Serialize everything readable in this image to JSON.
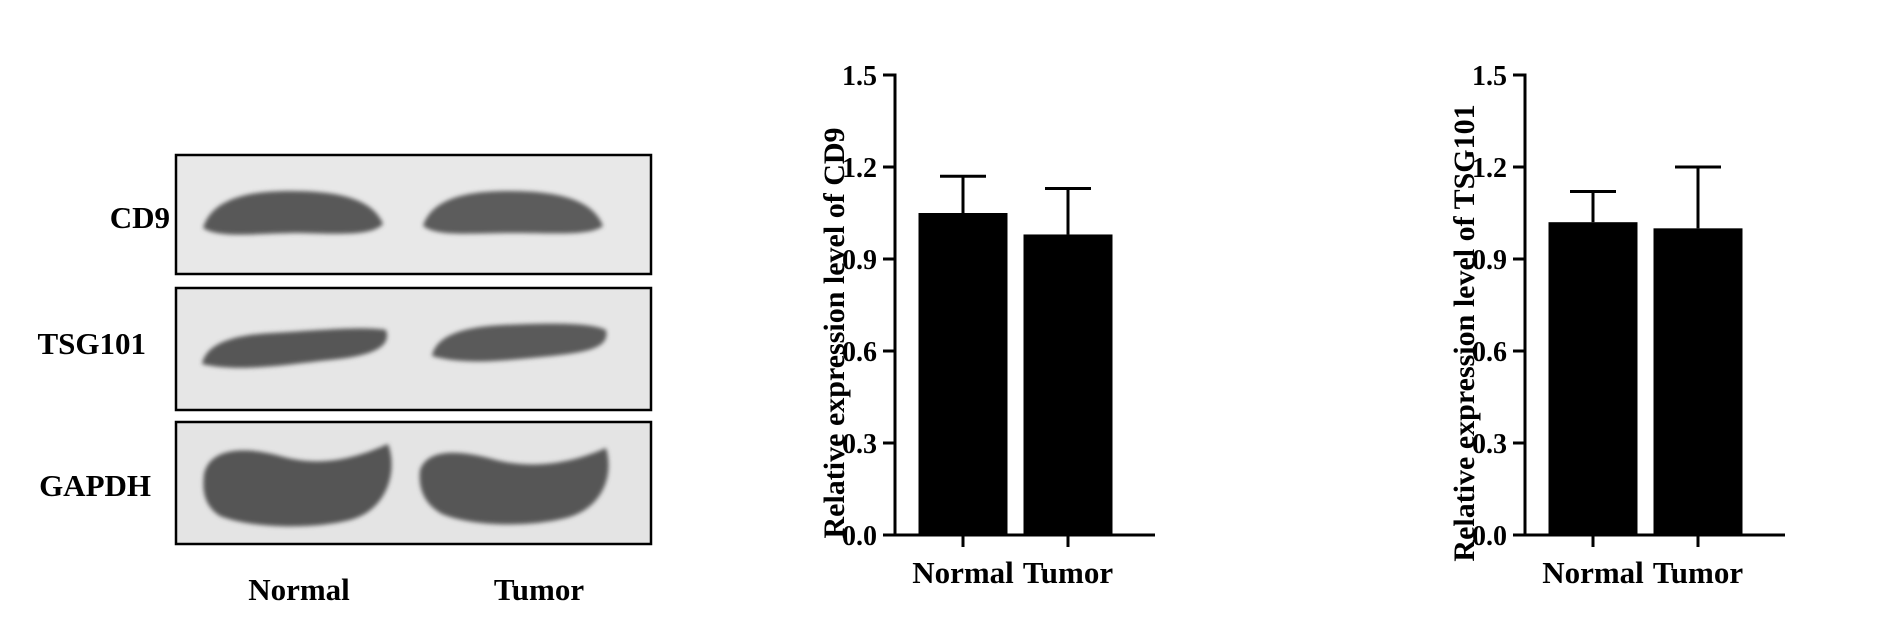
{
  "blot": {
    "rows": [
      {
        "label": "CD9"
      },
      {
        "label": "TSG101"
      },
      {
        "label": "GAPDH"
      }
    ],
    "lanes": [
      "Normal",
      "Tumor"
    ]
  },
  "colors": {
    "bar": "#000000",
    "band": "#5a5a5a",
    "membrane": "#e6e6e6"
  },
  "chart_data": [
    {
      "type": "bar",
      "categories": [
        "Normal",
        "Tumor"
      ],
      "values": [
        1.05,
        0.98
      ],
      "errors": [
        0.12,
        0.15
      ],
      "title": "",
      "xlabel": "",
      "ylabel": "Relative expression level of CD9",
      "ylim": [
        0,
        1.5
      ],
      "yticks": [
        "0.0",
        "0.3",
        "0.6",
        "0.9",
        "1.2",
        "1.5"
      ],
      "grid": false
    },
    {
      "type": "bar",
      "categories": [
        "Normal",
        "Tumor"
      ],
      "values": [
        1.02,
        1.0
      ],
      "errors": [
        0.1,
        0.2
      ],
      "title": "",
      "xlabel": "",
      "ylabel": "Relative expression level of TSG101",
      "ylim": [
        0,
        1.5
      ],
      "yticks": [
        "0.0",
        "0.3",
        "0.6",
        "0.9",
        "1.2",
        "1.5"
      ],
      "grid": false
    }
  ]
}
